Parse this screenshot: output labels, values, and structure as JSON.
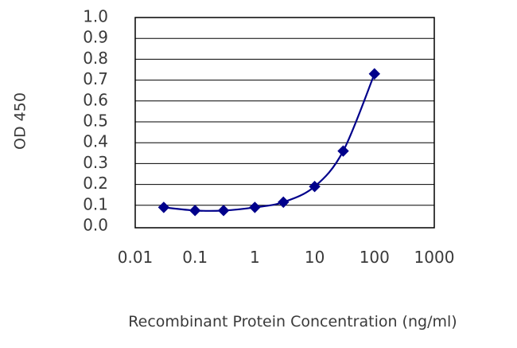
{
  "chart_data": {
    "type": "line",
    "title": "",
    "xlabel": "Recombinant Protein Concentration (ng/ml)",
    "ylabel": "OD 450",
    "xscale": "log",
    "xlim": [
      0.01,
      1000
    ],
    "ylim": [
      0.0,
      1.0
    ],
    "x_ticks": [
      "0.01",
      "0.1",
      "1",
      "10",
      "100",
      "1000"
    ],
    "y_ticks": [
      "0.0",
      "0.1",
      "0.2",
      "0.3",
      "0.4",
      "0.5",
      "0.6",
      "0.7",
      "0.8",
      "0.9",
      "1.0"
    ],
    "grid": "horizontal",
    "legend": "none",
    "series": [
      {
        "x": [
          0.03,
          0.1,
          0.3,
          1,
          3,
          10,
          30,
          100
        ],
        "y": [
          0.09,
          0.075,
          0.075,
          0.09,
          0.115,
          0.19,
          0.36,
          0.73
        ],
        "color": "#00008b",
        "marker": "diamond"
      }
    ]
  },
  "colors": {
    "line": "#00008b",
    "grid": "#000000",
    "frame": "#000000",
    "text": "#3a3a3a"
  }
}
